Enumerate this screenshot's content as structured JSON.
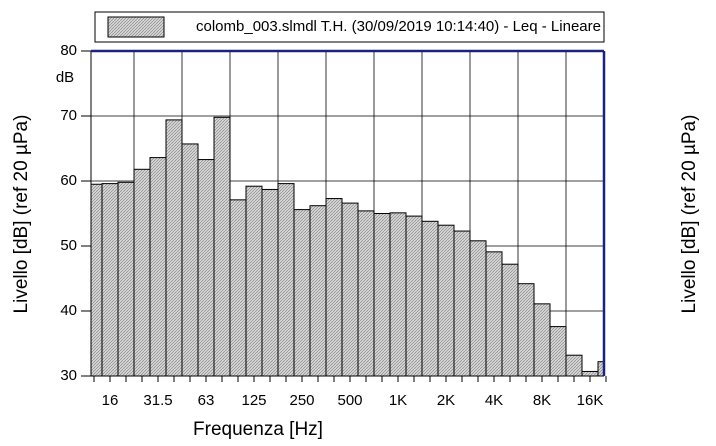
{
  "chart_data": {
    "type": "bar",
    "x_label": "Frequenza [Hz]",
    "y_label": "Livello [dB] (ref 20 µPa)",
    "y2_label": "Livello [dB] (ref 20 µPa)",
    "y_unit": "dB",
    "categories": [
      null,
      "16",
      null,
      null,
      "31.5",
      null,
      null,
      "63",
      null,
      null,
      "125",
      null,
      null,
      "250",
      null,
      null,
      "500",
      null,
      null,
      "1K",
      null,
      null,
      "2K",
      null,
      null,
      "4K",
      null,
      null,
      "8K",
      null,
      null,
      "16K",
      null
    ],
    "series": [
      {
        "name": "colomb_003.slmdl T.H. (30/09/2019 10:14:40) - Leq - Lineare",
        "color": "#c8c8c8",
        "values": [
          59.5,
          59.6,
          59.8,
          61.8,
          63.6,
          69.4,
          65.7,
          63.3,
          69.8,
          57.1,
          59.2,
          58.7,
          59.6,
          55.6,
          56.2,
          57.3,
          56.6,
          55.4,
          55.0,
          55.1,
          54.6,
          53.8,
          53.2,
          52.3,
          50.8,
          49.1,
          47.2,
          44.2,
          41.1,
          37.6,
          33.2,
          30.7,
          32.2
        ]
      }
    ],
    "ylim": [
      30,
      80
    ],
    "yticks": [
      30,
      40,
      50,
      60,
      70,
      80
    ],
    "grid": true
  }
}
